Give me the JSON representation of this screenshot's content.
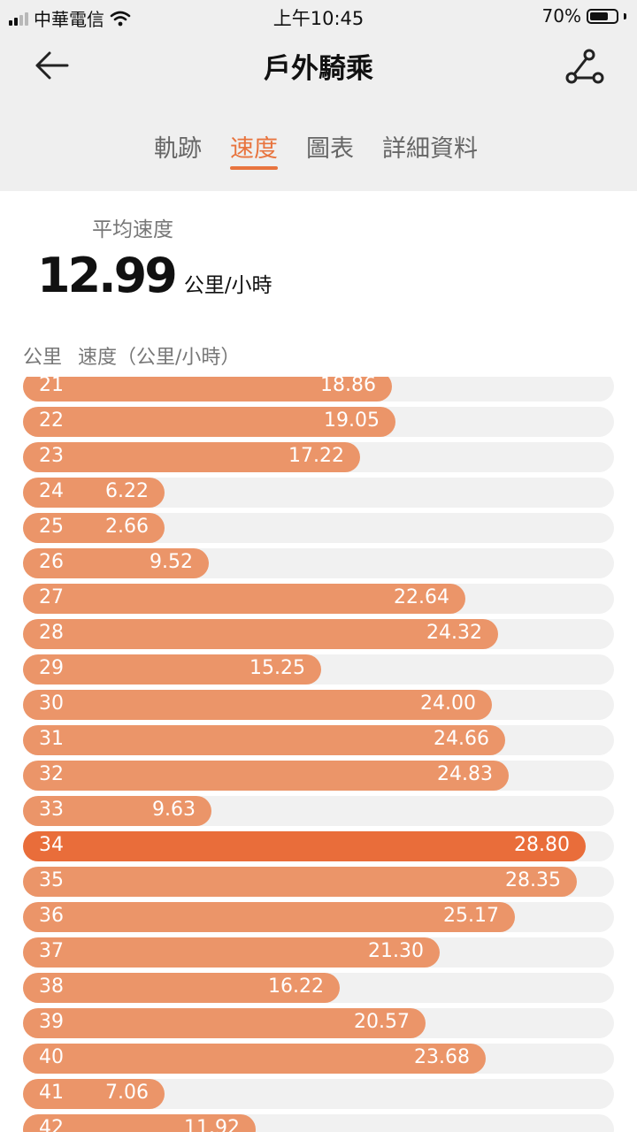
{
  "status_bar": {
    "carrier": "中華電信",
    "time": "上午10:45",
    "battery": "70%",
    "battery_level": 0.7
  },
  "header": {
    "title": "戶外騎乘",
    "back_icon": "back-arrow-icon",
    "share_icon": "route-share-icon"
  },
  "tabs": [
    {
      "label": "軌跡",
      "active": false
    },
    {
      "label": "速度",
      "active": true
    },
    {
      "label": "圖表",
      "active": false
    },
    {
      "label": "詳細資料",
      "active": false
    }
  ],
  "summary": {
    "label": "平均速度",
    "value": "12.99",
    "unit": "公里/小時"
  },
  "list_header": {
    "km_label": "公里",
    "speed_label": "速度（公里/小時）"
  },
  "colors": {
    "accent": "#e8743e",
    "bar": "#eb9569",
    "bar_max": "#e96d3a",
    "track": "#f1f1f1"
  },
  "max_scale": 30.23,
  "rows": [
    {
      "km": "21",
      "speed": "18.86"
    },
    {
      "km": "22",
      "speed": "19.05"
    },
    {
      "km": "23",
      "speed": "17.22"
    },
    {
      "km": "24",
      "speed": "6.22"
    },
    {
      "km": "25",
      "speed": "2.66"
    },
    {
      "km": "26",
      "speed": "9.52"
    },
    {
      "km": "27",
      "speed": "22.64"
    },
    {
      "km": "28",
      "speed": "24.32"
    },
    {
      "km": "29",
      "speed": "15.25"
    },
    {
      "km": "30",
      "speed": "24.00"
    },
    {
      "km": "31",
      "speed": "24.66"
    },
    {
      "km": "32",
      "speed": "24.83"
    },
    {
      "km": "33",
      "speed": "9.63"
    },
    {
      "km": "34",
      "speed": "28.80",
      "highlight": true
    },
    {
      "km": "35",
      "speed": "28.35"
    },
    {
      "km": "36",
      "speed": "25.17"
    },
    {
      "km": "37",
      "speed": "21.30"
    },
    {
      "km": "38",
      "speed": "16.22"
    },
    {
      "km": "39",
      "speed": "20.57"
    },
    {
      "km": "40",
      "speed": "23.68"
    },
    {
      "km": "41",
      "speed": "7.06"
    },
    {
      "km": "42",
      "speed": "11.92"
    }
  ]
}
